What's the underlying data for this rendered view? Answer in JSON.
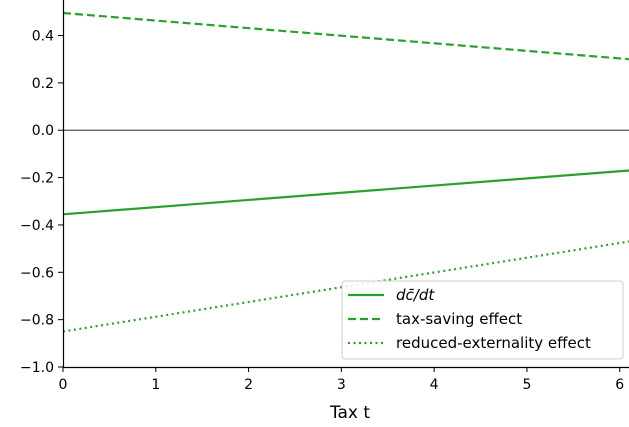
{
  "chart_data": {
    "type": "line",
    "title": "",
    "xlabel": "Tax t",
    "ylabel": "",
    "xlim": [
      0,
      6.1
    ],
    "ylim": [
      -1.0,
      0.55
    ],
    "xticks": [
      0,
      1,
      2,
      3,
      4,
      5,
      6
    ],
    "yticks": [
      -1.0,
      -0.8,
      -0.6,
      -0.4,
      -0.2,
      0.0,
      0.2,
      0.4
    ],
    "xtick_labels": [
      "0",
      "1",
      "2",
      "3",
      "4",
      "5",
      "6"
    ],
    "ytick_labels": [
      "−1.0",
      "−0.8",
      "−0.6",
      "−0.4",
      "−0.2",
      "0.0",
      "0.2",
      "0.4"
    ],
    "zero_line": true,
    "grid": false,
    "legend_position": "lower-right",
    "series": [
      {
        "name": "dc̄/dt",
        "style": "solid",
        "color": "#2ca02c",
        "x": [
          0,
          6.1
        ],
        "y": [
          -0.355,
          -0.17
        ]
      },
      {
        "name": "tax-saving effect",
        "style": "dashed",
        "color": "#2ca02c",
        "x": [
          0,
          6.1
        ],
        "y": [
          0.495,
          0.3
        ]
      },
      {
        "name": "reduced-externality effect",
        "style": "dotted",
        "color": "#2ca02c",
        "x": [
          0,
          6.1
        ],
        "y": [
          -0.85,
          -0.47
        ]
      }
    ]
  }
}
